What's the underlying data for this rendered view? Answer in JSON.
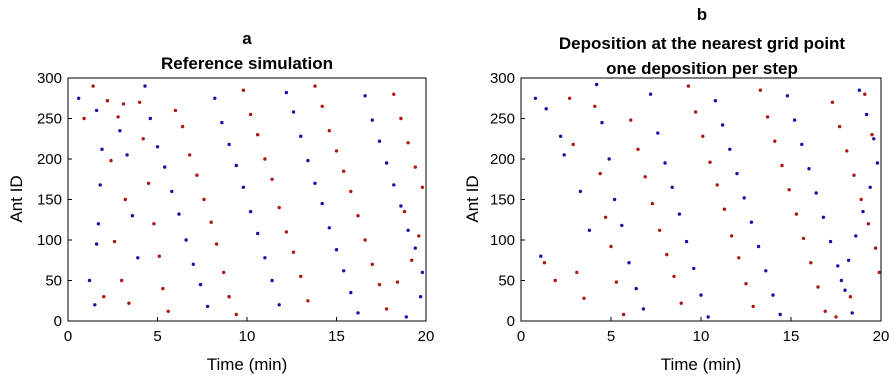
{
  "chart_data": [
    {
      "type": "scatter",
      "panel_label": "a",
      "title": "Reference simulation",
      "xlabel": "Time (min)",
      "ylabel": "Ant ID",
      "xlim": [
        0,
        20
      ],
      "ylim": [
        0,
        300
      ],
      "xticks": [
        0,
        5,
        10,
        15,
        20
      ],
      "yticks": [
        0,
        50,
        100,
        150,
        200,
        250,
        300
      ],
      "grid": false,
      "series": [
        {
          "color": "#b01515",
          "marker": "dot",
          "points": [
            [
              0.9,
              250
            ],
            [
              2.2,
              272
            ],
            [
              1.4,
              290
            ],
            [
              2.8,
              252
            ],
            [
              3.1,
              268
            ],
            [
              2.4,
              198
            ],
            [
              3.2,
              150
            ],
            [
              2.6,
              98
            ],
            [
              3.0,
              50
            ],
            [
              3.4,
              22
            ],
            [
              2.0,
              30
            ],
            [
              4.0,
              270
            ],
            [
              4.2,
              225
            ],
            [
              4.5,
              170
            ],
            [
              4.8,
              120
            ],
            [
              5.1,
              80
            ],
            [
              5.3,
              40
            ],
            [
              5.6,
              12
            ],
            [
              6.0,
              260
            ],
            [
              6.4,
              240
            ],
            [
              6.8,
              205
            ],
            [
              7.2,
              180
            ],
            [
              7.6,
              150
            ],
            [
              8.0,
              122
            ],
            [
              8.3,
              95
            ],
            [
              8.7,
              60
            ],
            [
              9.0,
              30
            ],
            [
              9.4,
              8
            ],
            [
              9.8,
              285
            ],
            [
              10.2,
              255
            ],
            [
              10.6,
              230
            ],
            [
              11.0,
              200
            ],
            [
              11.4,
              175
            ],
            [
              11.8,
              140
            ],
            [
              12.2,
              110
            ],
            [
              12.6,
              85
            ],
            [
              13.0,
              55
            ],
            [
              13.4,
              25
            ],
            [
              13.8,
              290
            ],
            [
              14.2,
              265
            ],
            [
              14.6,
              235
            ],
            [
              15.0,
              210
            ],
            [
              15.4,
              185
            ],
            [
              15.8,
              160
            ],
            [
              16.2,
              130
            ],
            [
              16.6,
              100
            ],
            [
              17.0,
              70
            ],
            [
              17.4,
              45
            ],
            [
              17.8,
              15
            ],
            [
              18.2,
              280
            ],
            [
              18.6,
              250
            ],
            [
              19.0,
              220
            ],
            [
              19.4,
              190
            ],
            [
              19.8,
              165
            ],
            [
              18.8,
              135
            ],
            [
              19.6,
              105
            ],
            [
              19.2,
              75
            ],
            [
              18.4,
              48
            ]
          ]
        },
        {
          "color": "#1414a8",
          "marker": "dot",
          "points": [
            [
              0.6,
              275
            ],
            [
              1.6,
              260
            ],
            [
              1.9,
              212
            ],
            [
              1.8,
              168
            ],
            [
              1.7,
              120
            ],
            [
              1.6,
              95
            ],
            [
              1.2,
              50
            ],
            [
              1.5,
              20
            ],
            [
              2.9,
              235
            ],
            [
              3.3,
              205
            ],
            [
              3.6,
              130
            ],
            [
              3.9,
              78
            ],
            [
              4.3,
              290
            ],
            [
              4.6,
              250
            ],
            [
              5.0,
              215
            ],
            [
              5.4,
              190
            ],
            [
              5.8,
              160
            ],
            [
              6.2,
              132
            ],
            [
              6.6,
              100
            ],
            [
              7.0,
              70
            ],
            [
              7.4,
              45
            ],
            [
              7.8,
              18
            ],
            [
              8.2,
              275
            ],
            [
              8.6,
              245
            ],
            [
              9.0,
              218
            ],
            [
              9.4,
              192
            ],
            [
              9.8,
              165
            ],
            [
              10.2,
              135
            ],
            [
              10.6,
              108
            ],
            [
              11.0,
              78
            ],
            [
              11.4,
              50
            ],
            [
              11.8,
              20
            ],
            [
              12.2,
              282
            ],
            [
              12.6,
              258
            ],
            [
              13.0,
              228
            ],
            [
              13.4,
              198
            ],
            [
              13.8,
              170
            ],
            [
              14.2,
              145
            ],
            [
              14.6,
              115
            ],
            [
              15.0,
              88
            ],
            [
              15.4,
              62
            ],
            [
              15.8,
              35
            ],
            [
              16.2,
              10
            ],
            [
              16.6,
              278
            ],
            [
              17.0,
              248
            ],
            [
              17.4,
              222
            ],
            [
              17.8,
              195
            ],
            [
              18.2,
              168
            ],
            [
              18.6,
              142
            ],
            [
              19.0,
              112
            ],
            [
              19.4,
              90
            ],
            [
              19.8,
              60
            ],
            [
              19.7,
              30
            ],
            [
              18.9,
              5
            ]
          ]
        }
      ]
    },
    {
      "type": "scatter",
      "panel_label": "b",
      "title": "Deposition at the nearest grid point",
      "subtitle": "one deposition per step",
      "xlabel": "Time (min)",
      "ylabel": "Ant ID",
      "xlim": [
        0,
        20
      ],
      "ylim": [
        0,
        300
      ],
      "xticks": [
        0,
        5,
        10,
        15,
        20
      ],
      "yticks": [
        0,
        50,
        100,
        150,
        200,
        250,
        300
      ],
      "grid": false,
      "series": [
        {
          "color": "#b01515",
          "marker": "dot",
          "points": [
            [
              1.3,
              72
            ],
            [
              1.9,
              50
            ],
            [
              2.7,
              275
            ],
            [
              2.9,
              218
            ],
            [
              3.1,
              60
            ],
            [
              3.5,
              28
            ],
            [
              4.1,
              265
            ],
            [
              4.4,
              182
            ],
            [
              4.7,
              128
            ],
            [
              5.0,
              92
            ],
            [
              5.3,
              48
            ],
            [
              5.7,
              8
            ],
            [
              6.1,
              248
            ],
            [
              6.5,
              212
            ],
            [
              6.9,
              178
            ],
            [
              7.3,
              145
            ],
            [
              7.7,
              112
            ],
            [
              8.1,
              82
            ],
            [
              8.5,
              55
            ],
            [
              8.9,
              22
            ],
            [
              9.3,
              290
            ],
            [
              9.7,
              258
            ],
            [
              10.1,
              228
            ],
            [
              10.5,
              196
            ],
            [
              10.9,
              168
            ],
            [
              11.3,
              138
            ],
            [
              11.7,
              105
            ],
            [
              12.1,
              78
            ],
            [
              12.5,
              46
            ],
            [
              12.9,
              18
            ],
            [
              13.3,
              285
            ],
            [
              13.7,
              252
            ],
            [
              14.1,
              222
            ],
            [
              14.5,
              192
            ],
            [
              14.9,
              162
            ],
            [
              15.3,
              132
            ],
            [
              15.7,
              102
            ],
            [
              16.1,
              72
            ],
            [
              16.5,
              42
            ],
            [
              16.9,
              12
            ],
            [
              17.3,
              270
            ],
            [
              17.7,
              240
            ],
            [
              18.1,
              210
            ],
            [
              18.5,
              180
            ],
            [
              18.9,
              150
            ],
            [
              19.3,
              120
            ],
            [
              19.7,
              90
            ],
            [
              19.9,
              60
            ],
            [
              18.3,
              30
            ],
            [
              17.5,
              5
            ],
            [
              19.1,
              280
            ],
            [
              19.5,
              230
            ]
          ]
        },
        {
          "color": "#1414a8",
          "marker": "dot",
          "points": [
            [
              0.8,
              275
            ],
            [
              1.4,
              262
            ],
            [
              1.1,
              80
            ],
            [
              2.2,
              228
            ],
            [
              2.4,
              205
            ],
            [
              3.3,
              160
            ],
            [
              3.8,
              112
            ],
            [
              4.2,
              292
            ],
            [
              4.5,
              245
            ],
            [
              4.9,
              200
            ],
            [
              5.2,
              150
            ],
            [
              5.6,
              118
            ],
            [
              6.0,
              72
            ],
            [
              6.4,
              40
            ],
            [
              6.8,
              15
            ],
            [
              7.2,
              280
            ],
            [
              7.6,
              232
            ],
            [
              8.0,
              195
            ],
            [
              8.4,
              165
            ],
            [
              8.8,
              132
            ],
            [
              9.2,
              98
            ],
            [
              9.6,
              65
            ],
            [
              10.0,
              32
            ],
            [
              10.4,
              5
            ],
            [
              10.8,
              272
            ],
            [
              11.2,
              242
            ],
            [
              11.6,
              212
            ],
            [
              12.0,
              182
            ],
            [
              12.4,
              152
            ],
            [
              12.8,
              122
            ],
            [
              13.2,
              92
            ],
            [
              13.6,
              62
            ],
            [
              14.0,
              32
            ],
            [
              14.4,
              8
            ],
            [
              14.8,
              278
            ],
            [
              15.2,
              248
            ],
            [
              15.6,
              218
            ],
            [
              16.0,
              188
            ],
            [
              16.4,
              158
            ],
            [
              16.8,
              128
            ],
            [
              17.2,
              98
            ],
            [
              17.6,
              68
            ],
            [
              18.0,
              38
            ],
            [
              18.4,
              10
            ],
            [
              18.8,
              285
            ],
            [
              19.2,
              255
            ],
            [
              19.6,
              225
            ],
            [
              19.8,
              195
            ],
            [
              19.4,
              165
            ],
            [
              19.0,
              135
            ],
            [
              18.6,
              105
            ],
            [
              18.2,
              75
            ],
            [
              17.8,
              50
            ]
          ]
        }
      ]
    }
  ]
}
